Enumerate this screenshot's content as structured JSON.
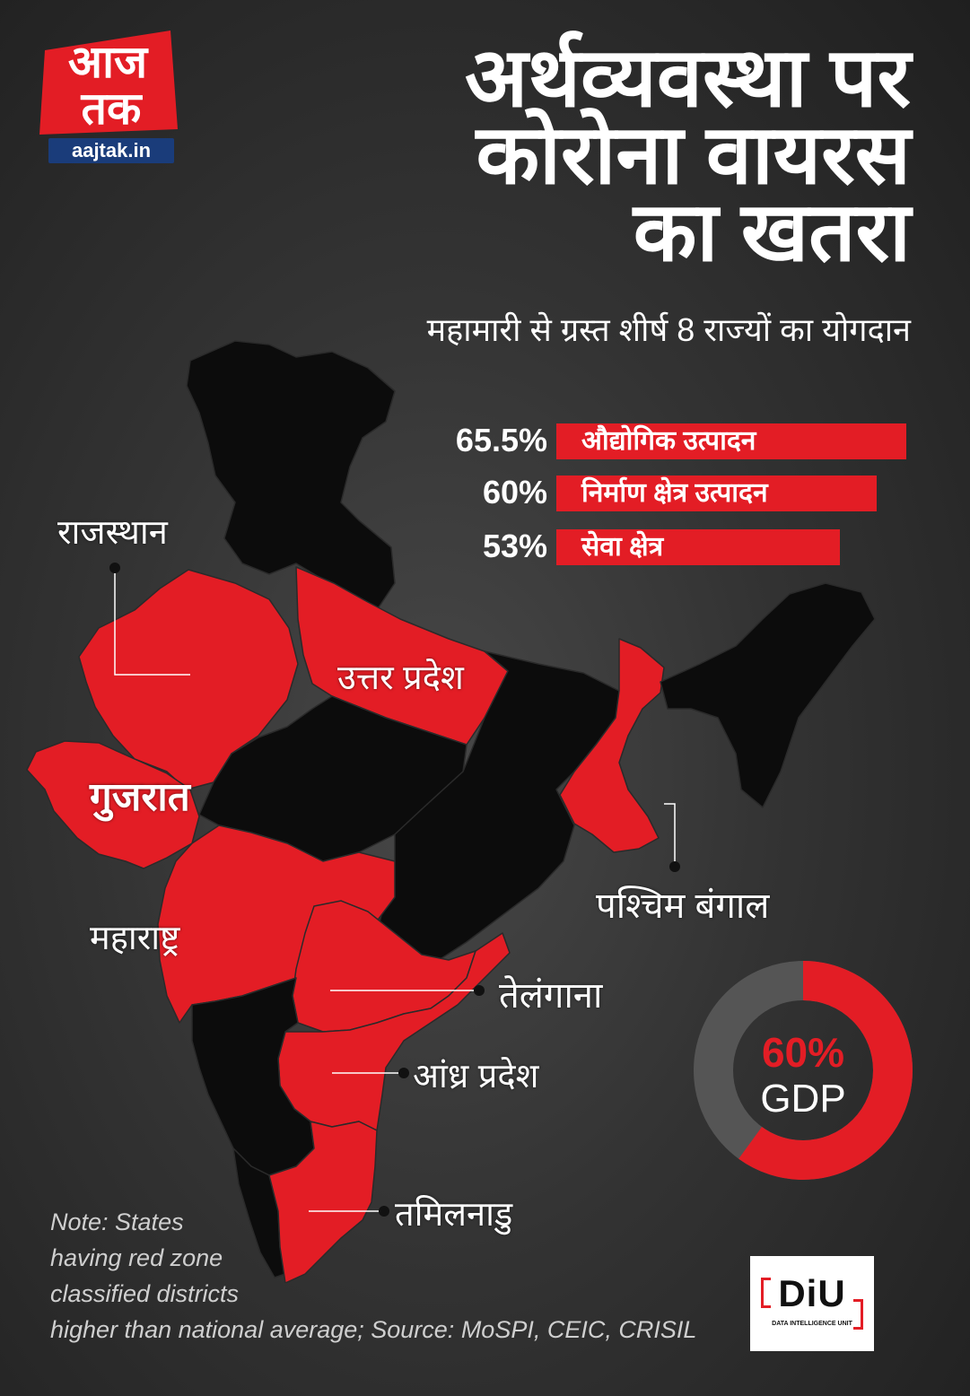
{
  "logo": {
    "name_line1": "आज",
    "name_line2": "तक",
    "url": "aajtak.in"
  },
  "title": {
    "line1": "अर्थव्यवस्था पर",
    "line2": "कोरोना वायरस",
    "line3": "का खतरा"
  },
  "subtitle": "महामारी से ग्रस्त शीर्ष 8 राज्यों का योगदान",
  "stats": [
    {
      "value": "65.5%",
      "label": "औद्योगिक उत्पादन",
      "share": 0.655
    },
    {
      "value": "60%",
      "label": "निर्माण क्षेत्र उत्पादन",
      "share": 0.6
    },
    {
      "value": "53%",
      "label": "सेवा क्षेत्र",
      "share": 0.53
    }
  ],
  "map": {
    "highlight_color": "#e31d25",
    "base_color": "#0c0c0c",
    "states": {
      "rajasthan": "राजस्थान",
      "uttar_pradesh": "उत्तर प्रदेश",
      "gujarat": "गुजरात",
      "maharashtra": "महाराष्ट्र",
      "west_bengal": "पश्चिम बंगाल",
      "telangana": "तेलंगाना",
      "andhra_pradesh": "आंध्र प्रदेश",
      "tamil_nadu": "तमिलनाडु"
    }
  },
  "gdp": {
    "value": "60%",
    "label": "GDP",
    "share": 0.6,
    "fill_color": "#e31d25",
    "rest_color": "#555555"
  },
  "note": {
    "line1": "Note: States",
    "line2": "having red zone",
    "line3": "classified districts",
    "line4": "higher than national average; Source: MoSPI, CEIC, CRISIL"
  },
  "diu": {
    "mark": "DiU",
    "caption": "DATA INTELLIGENCE UNIT"
  }
}
